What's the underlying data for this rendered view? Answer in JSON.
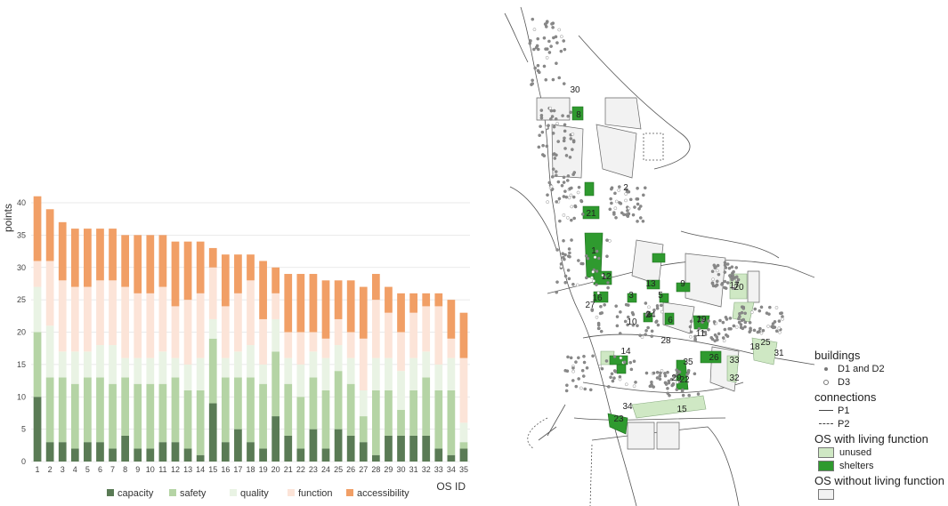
{
  "chart_data": {
    "type": "bar",
    "stacked": true,
    "ylabel": "points",
    "xlabel": "OS ID",
    "ylim": [
      0,
      40
    ],
    "yticks": [
      0,
      5,
      10,
      15,
      20,
      25,
      30,
      35,
      40
    ],
    "grid": true,
    "legend_position": "bottom",
    "categories": [
      "1",
      "2",
      "3",
      "4",
      "5",
      "6",
      "7",
      "8",
      "9",
      "10",
      "11",
      "12",
      "13",
      "14",
      "15",
      "16",
      "17",
      "18",
      "19",
      "20",
      "21",
      "22",
      "23",
      "24",
      "25",
      "26",
      "27",
      "28",
      "29",
      "30",
      "31",
      "32",
      "33",
      "34",
      "35"
    ],
    "series": [
      {
        "name": "capacity",
        "color": "#5a7b55",
        "values": [
          10,
          3,
          3,
          2,
          3,
          3,
          2,
          4,
          2,
          2,
          3,
          3,
          2,
          1,
          9,
          3,
          5,
          3,
          2,
          7,
          4,
          2,
          5,
          2,
          5,
          4,
          3,
          1,
          4,
          4,
          4,
          4,
          2,
          1,
          2
        ]
      },
      {
        "name": "safety",
        "color": "#b5d4a5",
        "values": [
          10,
          10,
          10,
          10,
          10,
          10,
          10,
          9,
          10,
          10,
          9,
          10,
          9,
          10,
          10,
          10,
          8,
          10,
          10,
          10,
          8,
          8,
          8,
          9,
          9,
          8,
          4,
          10,
          7,
          4,
          7,
          9,
          9,
          10,
          1
        ]
      },
      {
        "name": "quality",
        "color": "#e9f3e4",
        "values": [
          7,
          8,
          4,
          5,
          4,
          5,
          6,
          3,
          4,
          4,
          5,
          3,
          4,
          5,
          3,
          3,
          4,
          5,
          3,
          5,
          4,
          5,
          4,
          5,
          4,
          4,
          4,
          5,
          5,
          6,
          5,
          4,
          4,
          5,
          3
        ]
      },
      {
        "name": "function",
        "color": "#fce4d8",
        "values": [
          4,
          10,
          11,
          10,
          10,
          10,
          10,
          11,
          10,
          10,
          10,
          8,
          10,
          10,
          8,
          8,
          9,
          10,
          7,
          4,
          4,
          5,
          3,
          3,
          4,
          4,
          8,
          9,
          7,
          6,
          7,
          7,
          9,
          3,
          10
        ]
      },
      {
        "name": "accessibility",
        "color": "#f19f66",
        "values": [
          10,
          8,
          9,
          9,
          9,
          8,
          8,
          8,
          9,
          9,
          8,
          10,
          9,
          8,
          3,
          8,
          6,
          4,
          9,
          4,
          9,
          9,
          9,
          9,
          6,
          8,
          8,
          4,
          4,
          6,
          3,
          2,
          2,
          6,
          7
        ]
      }
    ]
  },
  "map": {
    "labels": [
      "30",
      "8",
      "2",
      "21",
      "1",
      "12",
      "16",
      "13",
      "3",
      "10",
      "4",
      "5",
      "17",
      "6",
      "7",
      "11",
      "20",
      "9",
      "19",
      "28",
      "26",
      "33",
      "32",
      "35",
      "24",
      "27",
      "18",
      "25",
      "31",
      "22",
      "14",
      "29",
      "34",
      "15",
      "23"
    ],
    "legend": {
      "buildings_title": "buildings",
      "d1d2": "D1 and D2",
      "d3": "D3",
      "connections_title": "connections",
      "p1": "P1",
      "p2": "P2",
      "living_title": "OS with living function",
      "unused": "unused",
      "shelters": "shelters",
      "without_title": "OS without living function"
    },
    "colors": {
      "shelter": "#2f9a2f",
      "unused": "#cfe8c4",
      "other_os": "#f2f2f2"
    }
  }
}
